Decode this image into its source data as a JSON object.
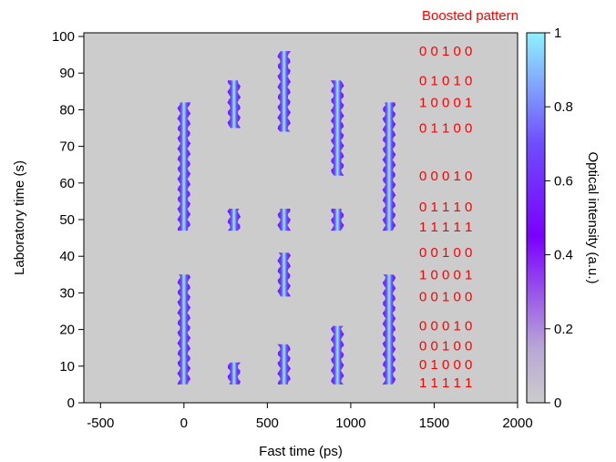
{
  "chart_data": {
    "type": "heatmap",
    "xlabel": "Fast time (ps)",
    "ylabel": "Laboratory time (s)",
    "colorbar_label": "Optical intensity (a.u.)",
    "pattern_title": "Boosted pattern",
    "xlim": [
      -600,
      2000
    ],
    "ylim": [
      0,
      101
    ],
    "x_ticks": [
      -500,
      0,
      500,
      1000,
      1500,
      2000
    ],
    "y_ticks": [
      0,
      10,
      20,
      30,
      40,
      50,
      60,
      70,
      80,
      90,
      100
    ],
    "colorbar_range": [
      0,
      1
    ],
    "colorbar_ticks": [
      0,
      0.2,
      0.4,
      0.6,
      0.8,
      1
    ],
    "colors": {
      "background": "#cccccc",
      "low": "#cccccc",
      "mid": "#7a00ff",
      "high": "#8ff2ff",
      "pattern_text": "#ff0000"
    },
    "streaks": [
      {
        "x": 0,
        "y_start": 5,
        "y_end": 35
      },
      {
        "x": 0,
        "y_start": 47,
        "y_end": 82
      },
      {
        "x": 300,
        "y_start": 5,
        "y_end": 11
      },
      {
        "x": 300,
        "y_start": 47,
        "y_end": 53
      },
      {
        "x": 300,
        "y_start": 75,
        "y_end": 88
      },
      {
        "x": 600,
        "y_start": 5,
        "y_end": 16
      },
      {
        "x": 600,
        "y_start": 29,
        "y_end": 41
      },
      {
        "x": 600,
        "y_start": 47,
        "y_end": 53
      },
      {
        "x": 600,
        "y_start": 74,
        "y_end": 96
      },
      {
        "x": 920,
        "y_start": 5,
        "y_end": 21
      },
      {
        "x": 920,
        "y_start": 47,
        "y_end": 53
      },
      {
        "x": 920,
        "y_start": 62,
        "y_end": 88
      },
      {
        "x": 1230,
        "y_start": 5,
        "y_end": 35
      },
      {
        "x": 1230,
        "y_start": 47,
        "y_end": 82
      }
    ],
    "patterns": [
      {
        "y": 96,
        "text": "0 0 1 0 0"
      },
      {
        "y": 88,
        "text": "0 1 0 1 0"
      },
      {
        "y": 82,
        "text": "1 0 0 0 1"
      },
      {
        "y": 75,
        "text": "0 1 1 0 0"
      },
      {
        "y": 62,
        "text": "0 0 0 1 0"
      },
      {
        "y": 53.5,
        "text": "0 1 1 1 0"
      },
      {
        "y": 48,
        "text": "1 1 1 1 1"
      },
      {
        "y": 41,
        "text": "0 0 1 0 0"
      },
      {
        "y": 35,
        "text": "1 0 0 0 1"
      },
      {
        "y": 29,
        "text": "0 0 1 0 0"
      },
      {
        "y": 21,
        "text": "0 0 0 1 0"
      },
      {
        "y": 15.5,
        "text": "0 0 1 0 0"
      },
      {
        "y": 10.5,
        "text": "0 1 0 0 0"
      },
      {
        "y": 5.5,
        "text": "1 1 1 1 1"
      }
    ]
  }
}
